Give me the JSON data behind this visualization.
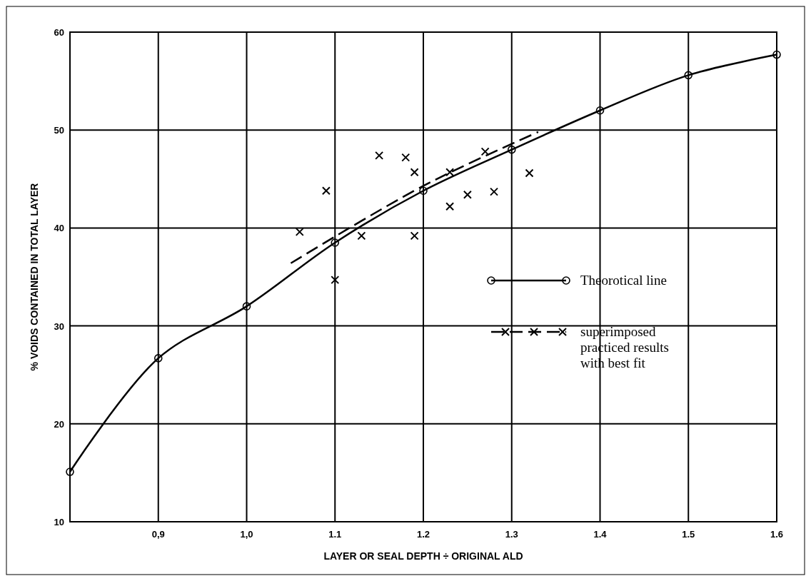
{
  "chart_data": {
    "type": "line",
    "xlabel": "LAYER OR SEAL DEPTH ÷ ORIGINAL ALD",
    "ylabel": "% VOIDS CONTAINED IN TOTAL LAYER",
    "xlim": [
      0.8,
      1.6
    ],
    "xticks": [
      {
        "value": 0.9,
        "label": "0,9"
      },
      {
        "value": 1.0,
        "label": "1,0"
      },
      1.1,
      1.2,
      1.3,
      1.4,
      1.5,
      1.6
    ],
    "ylim": [
      10,
      60
    ],
    "yticks": [
      10,
      20,
      30,
      40,
      50,
      60
    ],
    "grid": true,
    "legend": "right",
    "series": [
      {
        "name": "Theorotical line",
        "color": "#000000",
        "marker": "circle",
        "line_style": "solid",
        "x": [
          0.8,
          0.9,
          1.0,
          1.1,
          1.2,
          1.3,
          1.4,
          1.5,
          1.6
        ],
        "values": [
          15.1,
          26.7,
          32.0,
          38.5,
          43.8,
          48.0,
          52.0,
          55.6,
          57.7
        ]
      },
      {
        "name": "superimposed practiced results with best fit",
        "type": "scatter",
        "color": "#000000",
        "marker": "cross",
        "x": [
          1.06,
          1.1,
          1.13,
          1.19,
          1.19,
          1.18,
          1.23,
          1.23,
          1.25,
          1.28,
          1.27,
          1.32,
          1.09,
          1.15
        ],
        "values": [
          39.6,
          34.7,
          39.2,
          39.2,
          45.7,
          47.2,
          45.7,
          42.2,
          43.4,
          43.7,
          47.8,
          45.6,
          43.8,
          47.4
        ]
      },
      {
        "color": "#000000",
        "marker": "none",
        "line_style": "dashed",
        "x": [
          1.05,
          1.2,
          1.33
        ],
        "values": [
          36.4,
          44.3,
          49.8
        ]
      }
    ]
  }
}
